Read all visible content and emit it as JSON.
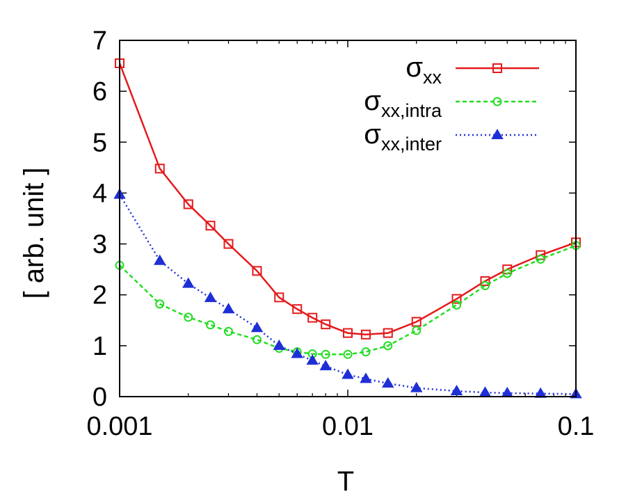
{
  "chart_data": {
    "type": "line",
    "xscale": "log",
    "xlabel": "T",
    "ylabel": "[ arb. unit ]",
    "xlim": [
      0.001,
      0.1
    ],
    "ylim": [
      0,
      7
    ],
    "x_ticks": [
      0.001,
      0.01,
      0.1
    ],
    "x_tick_labels": [
      "0.001",
      "0.01",
      "0.1"
    ],
    "y_ticks": [
      0,
      1,
      2,
      3,
      4,
      5,
      6,
      7
    ],
    "y_tick_labels": [
      "0",
      "1",
      "2",
      "3",
      "4",
      "5",
      "6",
      "7"
    ],
    "grid": false,
    "legend_position": "top-right",
    "series": [
      {
        "name": "σ_xx",
        "legend_main": "σ",
        "legend_sub": "xx",
        "color": "#e41a1c",
        "marker": "square",
        "line_style": "solid",
        "x": [
          0.001,
          0.0015,
          0.002,
          0.0025,
          0.003,
          0.004,
          0.005,
          0.006,
          0.007,
          0.008,
          0.01,
          0.012,
          0.015,
          0.02,
          0.03,
          0.04,
          0.05,
          0.07,
          0.1
        ],
        "values": [
          6.55,
          4.48,
          3.78,
          3.36,
          3.0,
          2.47,
          1.95,
          1.72,
          1.55,
          1.42,
          1.25,
          1.22,
          1.25,
          1.47,
          1.92,
          2.27,
          2.5,
          2.78,
          3.03
        ]
      },
      {
        "name": "σ_xx,intra",
        "legend_main": "σ",
        "legend_sub": "xx,intra",
        "color": "#22dd22",
        "marker": "circle",
        "line_style": "dashed",
        "x": [
          0.001,
          0.0015,
          0.002,
          0.0025,
          0.003,
          0.004,
          0.005,
          0.006,
          0.007,
          0.008,
          0.01,
          0.012,
          0.015,
          0.02,
          0.03,
          0.04,
          0.05,
          0.07,
          0.1
        ],
        "values": [
          2.58,
          1.82,
          1.56,
          1.41,
          1.28,
          1.12,
          0.95,
          0.88,
          0.84,
          0.83,
          0.83,
          0.88,
          1.0,
          1.3,
          1.8,
          2.18,
          2.42,
          2.7,
          2.97
        ]
      },
      {
        "name": "σ_xx,inter",
        "legend_main": "σ",
        "legend_sub": "xx,inter",
        "color": "#1f2fd6",
        "marker": "triangle",
        "line_style": "dotted",
        "x": [
          0.001,
          0.0015,
          0.002,
          0.0025,
          0.003,
          0.004,
          0.005,
          0.006,
          0.007,
          0.008,
          0.01,
          0.012,
          0.015,
          0.02,
          0.03,
          0.04,
          0.05,
          0.07,
          0.1
        ],
        "values": [
          3.97,
          2.67,
          2.22,
          1.94,
          1.72,
          1.35,
          1.0,
          0.84,
          0.71,
          0.6,
          0.43,
          0.35,
          0.26,
          0.17,
          0.11,
          0.08,
          0.07,
          0.06,
          0.05
        ]
      }
    ]
  }
}
